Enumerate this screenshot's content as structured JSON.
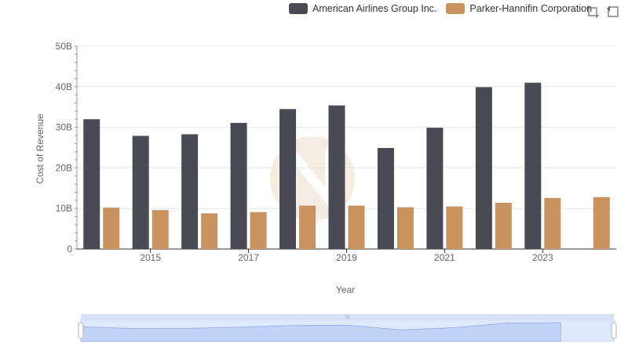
{
  "chart_data": {
    "type": "bar",
    "xlabel": "Year",
    "ylabel": "Cost of Revenue",
    "categories": [
      "2014",
      "2015",
      "2016",
      "2017",
      "2018",
      "2019",
      "2020",
      "2021",
      "2022",
      "2023",
      "2024"
    ],
    "x_tick_labels": [
      "2015",
      "2017",
      "2019",
      "2021",
      "2023"
    ],
    "y_tick_labels": [
      "0",
      "10B",
      "20B",
      "30B",
      "40B",
      "50B"
    ],
    "ylim": [
      0,
      50
    ],
    "y_unit": "B",
    "grid": true,
    "legend_position": "top-right",
    "series": [
      {
        "name": "American Airlines Group Inc.",
        "color": "#4a4a55",
        "values": [
          32.0,
          27.9,
          28.3,
          31.1,
          34.5,
          35.4,
          24.9,
          29.9,
          39.9,
          41.0,
          null
        ]
      },
      {
        "name": "Parker-Hannifin Corporation",
        "color": "#c99360",
        "values": [
          10.2,
          9.6,
          8.8,
          9.1,
          10.7,
          10.7,
          10.3,
          10.5,
          11.4,
          12.6,
          12.8
        ]
      }
    ]
  },
  "toolbox": {
    "zoom_icon": "zoom-icon",
    "restore_icon": "restore-icon"
  },
  "data_zoom": {
    "handle_label": "III",
    "range_start": 0,
    "range_end": 100
  }
}
